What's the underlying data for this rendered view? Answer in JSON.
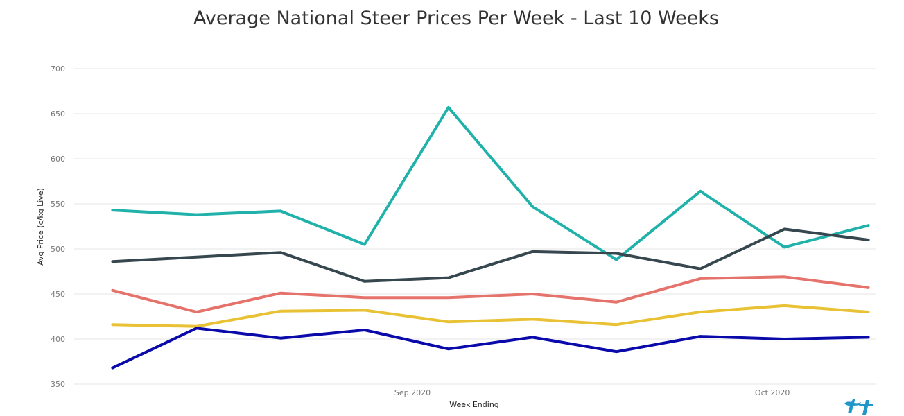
{
  "chart_data": {
    "type": "line",
    "title": "Average National Steer Prices Per Week - Last 10 Weeks",
    "xlabel": "Week Ending",
    "ylabel": "Avg Price (c/kg Live)",
    "ylim": [
      350,
      700
    ],
    "yticks": [
      350,
      400,
      450,
      500,
      550,
      600,
      650,
      700
    ],
    "x": [
      "2020-08-14",
      "2020-08-21",
      "2020-08-28",
      "2020-09-04",
      "2020-09-11",
      "2020-09-18",
      "2020-09-25",
      "2020-10-02",
      "2020-10-09",
      "2020-10-16"
    ],
    "xticks": [
      {
        "date": "2020-09-08",
        "label": "Sep 2020"
      },
      {
        "date": "2020-10-08",
        "label": "Oct 2020"
      }
    ],
    "grid": true,
    "series": [
      {
        "color": "#20b2aa",
        "values": [
          543,
          538,
          542,
          505,
          657,
          547,
          488,
          564,
          502,
          526
        ]
      },
      {
        "color": "#37474f",
        "values": [
          486,
          491,
          496,
          464,
          468,
          497,
          495,
          478,
          522,
          510
        ]
      },
      {
        "color": "#e5736b",
        "values": [
          454,
          430,
          451,
          446,
          446,
          450,
          441,
          467,
          469,
          457
        ]
      },
      {
        "color": "#e8c234",
        "values": [
          416,
          414,
          431,
          432,
          419,
          422,
          416,
          430,
          437,
          430
        ]
      },
      {
        "color": "#0a0aaa",
        "values": [
          368,
          412,
          401,
          410,
          389,
          402,
          386,
          403,
          400,
          402
        ]
      }
    ]
  },
  "logo": {
    "icon": "tt-logo-icon",
    "color": "#2196c8"
  }
}
